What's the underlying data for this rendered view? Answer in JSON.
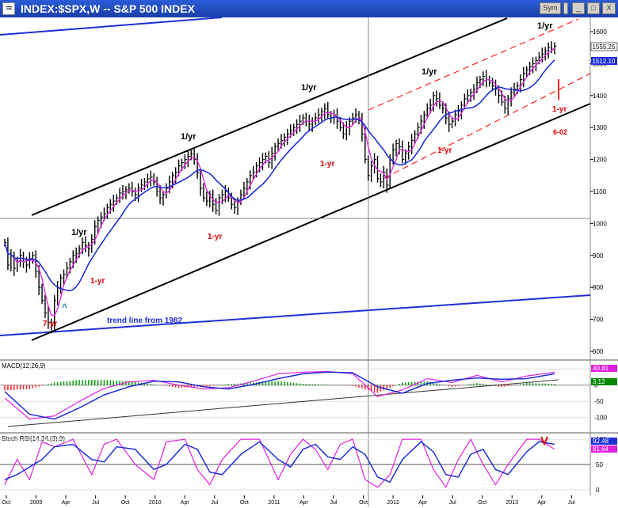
{
  "window": {
    "title": "INDEX:$SPX,W -- S&P 500 INDEX",
    "buttons": {
      "sym": "Sym",
      "minimize": "_",
      "maximize": "□",
      "close": "X"
    }
  },
  "chart_data": [
    {
      "type": "candlestick",
      "panel": "price",
      "y_ticks": [
        600,
        700,
        800,
        900,
        1000,
        1100,
        1200,
        1300,
        1400,
        1500,
        1600
      ],
      "ylim": [
        580,
        1660
      ],
      "x_start": "2008-10",
      "x_end": "2013-07",
      "last_price": "1555.25",
      "ma_value": "1512.10",
      "colors": {
        "price": "#000000",
        "fast_ma": "#e020e0",
        "slow_ma": "#1f2fd6",
        "channel": "#000000",
        "dashed_channel": "#ff0000",
        "trend_1982": "#1f2fd6"
      },
      "weekly_close": [
        [
          0,
          940
        ],
        [
          1,
          870
        ],
        [
          2,
          900
        ],
        [
          3,
          860
        ],
        [
          4,
          880
        ],
        [
          5,
          900
        ],
        [
          6,
          880
        ],
        [
          7,
          870
        ],
        [
          8,
          890
        ],
        [
          9,
          900
        ],
        [
          10,
          850
        ],
        [
          11,
          800
        ],
        [
          12,
          760
        ],
        [
          13,
          720
        ],
        [
          14,
          690
        ],
        [
          15,
          680
        ],
        [
          16,
          760
        ],
        [
          17,
          800
        ],
        [
          18,
          830
        ],
        [
          19,
          840
        ],
        [
          20,
          860
        ],
        [
          21,
          880
        ],
        [
          22,
          900
        ],
        [
          23,
          905
        ],
        [
          24,
          920
        ],
        [
          25,
          940
        ],
        [
          26,
          930
        ],
        [
          27,
          920
        ],
        [
          28,
          950
        ],
        [
          29,
          990
        ],
        [
          30,
          1010
        ],
        [
          31,
          1020
        ],
        [
          32,
          1030
        ],
        [
          33,
          1050
        ],
        [
          34,
          1060
        ],
        [
          35,
          1070
        ],
        [
          36,
          1080
        ],
        [
          37,
          1095
        ],
        [
          38,
          1100
        ],
        [
          39,
          1105
        ],
        [
          40,
          1110
        ],
        [
          41,
          1100
        ],
        [
          42,
          1090
        ],
        [
          43,
          1110
        ],
        [
          44,
          1120
        ],
        [
          45,
          1130
        ],
        [
          46,
          1140
        ],
        [
          47,
          1145
        ],
        [
          48,
          1130
        ],
        [
          49,
          1100
        ],
        [
          50,
          1080
        ],
        [
          51,
          1090
        ],
        [
          52,
          1110
        ],
        [
          53,
          1130
        ],
        [
          54,
          1150
        ],
        [
          55,
          1160
        ],
        [
          56,
          1180
        ],
        [
          57,
          1190
        ],
        [
          58,
          1200
        ],
        [
          59,
          1210
        ],
        [
          60,
          1217
        ],
        [
          61,
          1200
        ],
        [
          62,
          1160
        ],
        [
          63,
          1110
        ],
        [
          64,
          1080
        ],
        [
          65,
          1070
        ],
        [
          66,
          1090
        ],
        [
          67,
          1060
        ],
        [
          68,
          1040
        ],
        [
          69,
          1080
        ],
        [
          70,
          1090
        ],
        [
          71,
          1100
        ],
        [
          72,
          1080
        ],
        [
          73,
          1060
        ],
        [
          74,
          1050
        ],
        [
          75,
          1070
        ],
        [
          76,
          1090
        ],
        [
          77,
          1110
        ],
        [
          78,
          1130
        ],
        [
          79,
          1150
        ],
        [
          80,
          1160
        ],
        [
          81,
          1180
        ],
        [
          82,
          1190
        ],
        [
          83,
          1200
        ],
        [
          84,
          1210
        ],
        [
          85,
          1190
        ],
        [
          86,
          1220
        ],
        [
          87,
          1240
        ],
        [
          88,
          1250
        ],
        [
          89,
          1260
        ],
        [
          90,
          1270
        ],
        [
          91,
          1280
        ],
        [
          92,
          1290
        ],
        [
          93,
          1300
        ],
        [
          94,
          1310
        ],
        [
          95,
          1320
        ],
        [
          96,
          1330
        ],
        [
          97,
          1320
        ],
        [
          98,
          1310
        ],
        [
          99,
          1320
        ],
        [
          100,
          1330
        ],
        [
          101,
          1340
        ],
        [
          102,
          1350
        ],
        [
          103,
          1360
        ],
        [
          104,
          1340
        ],
        [
          105,
          1330
        ],
        [
          106,
          1340
        ],
        [
          107,
          1320
        ],
        [
          108,
          1300
        ],
        [
          109,
          1280
        ],
        [
          110,
          1300
        ],
        [
          111,
          1320
        ],
        [
          112,
          1330
        ],
        [
          113,
          1340
        ],
        [
          114,
          1330
        ],
        [
          115,
          1280
        ],
        [
          116,
          1200
        ],
        [
          117,
          1150
        ],
        [
          118,
          1180
        ],
        [
          119,
          1200
        ],
        [
          120,
          1140
        ],
        [
          121,
          1130
        ],
        [
          122,
          1160
        ],
        [
          123,
          1120
        ],
        [
          124,
          1200
        ],
        [
          125,
          1230
        ],
        [
          126,
          1250
        ],
        [
          127,
          1240
        ],
        [
          128,
          1200
        ],
        [
          129,
          1220
        ],
        [
          130,
          1240
        ],
        [
          131,
          1260
        ],
        [
          132,
          1280
        ],
        [
          133,
          1300
        ],
        [
          134,
          1320
        ],
        [
          135,
          1340
        ],
        [
          136,
          1360
        ],
        [
          137,
          1370
        ],
        [
          138,
          1400
        ],
        [
          139,
          1390
        ],
        [
          140,
          1370
        ],
        [
          141,
          1360
        ],
        [
          142,
          1330
        ],
        [
          143,
          1310
        ],
        [
          144,
          1320
        ],
        [
          145,
          1340
        ],
        [
          146,
          1350
        ],
        [
          147,
          1370
        ],
        [
          148,
          1390
        ],
        [
          149,
          1400
        ],
        [
          150,
          1410
        ],
        [
          151,
          1420
        ],
        [
          152,
          1440
        ],
        [
          153,
          1450
        ],
        [
          154,
          1460
        ],
        [
          155,
          1450
        ],
        [
          156,
          1440
        ],
        [
          157,
          1430
        ],
        [
          158,
          1420
        ],
        [
          159,
          1400
        ],
        [
          160,
          1380
        ],
        [
          161,
          1360
        ],
        [
          162,
          1390
        ],
        [
          163,
          1410
        ],
        [
          164,
          1420
        ],
        [
          165,
          1430
        ],
        [
          166,
          1450
        ],
        [
          167,
          1470
        ],
        [
          168,
          1480
        ],
        [
          169,
          1490
        ],
        [
          170,
          1500
        ],
        [
          171,
          1510
        ],
        [
          172,
          1520
        ],
        [
          173,
          1530
        ],
        [
          174,
          1540
        ],
        [
          175,
          1550
        ],
        [
          176,
          1545
        ],
        [
          177,
          1555
        ]
      ],
      "annotations": [
        {
          "text": "trend line from 1982",
          "color": "#1f2fd6"
        },
        {
          "text": "7-yr",
          "color": "#dd0000"
        },
        {
          "text": "1-yr",
          "color": "#dd0000",
          "id": "a2"
        },
        {
          "text": "1/yr",
          "color": "#000000",
          "id": "a3"
        },
        {
          "text": "^",
          "color": "#1f8f8f"
        },
        {
          "text": "1/yr",
          "color": "#000000",
          "id": "a5"
        },
        {
          "text": "1-yr",
          "color": "#dd0000",
          "id": "a6"
        },
        {
          "text": "1/yr",
          "color": "#000000",
          "id": "a7"
        },
        {
          "text": "1-yr",
          "color": "#dd0000",
          "id": "a8"
        },
        {
          "text": "1/yr",
          "color": "#000000",
          "id": "a9"
        },
        {
          "text": "1-yr",
          "color": "#dd0000",
          "id": "a10"
        },
        {
          "text": "1/yr",
          "color": "#000000",
          "id": "a11"
        },
        {
          "text": "1-yr",
          "color": "#dd0000",
          "id": "a12"
        },
        {
          "text": "6-02",
          "color": "#dd0000"
        }
      ]
    },
    {
      "type": "macd",
      "panel": "macd",
      "label": "MACD(12,26,9)",
      "y_ticks": [
        50,
        0,
        -50,
        -100
      ],
      "ylim": [
        -130,
        70
      ],
      "macd_value": "40.81",
      "signal_value": "3.12",
      "colors": {
        "macd": "#e020e0",
        "signal": "#1f2fd6",
        "hist_pos": "#00a000",
        "hist_neg": "#ff2020"
      },
      "macd_line": [
        [
          0,
          -40
        ],
        [
          8,
          -105
        ],
        [
          16,
          -95
        ],
        [
          24,
          -50
        ],
        [
          32,
          -10
        ],
        [
          40,
          10
        ],
        [
          48,
          15
        ],
        [
          56,
          0
        ],
        [
          64,
          -12
        ],
        [
          72,
          -8
        ],
        [
          80,
          12
        ],
        [
          88,
          35
        ],
        [
          96,
          40
        ],
        [
          104,
          42
        ],
        [
          112,
          35
        ],
        [
          120,
          -35
        ],
        [
          128,
          -15
        ],
        [
          136,
          20
        ],
        [
          144,
          8
        ],
        [
          152,
          30
        ],
        [
          160,
          10
        ],
        [
          168,
          28
        ],
        [
          177,
          40
        ]
      ],
      "signal_line": [
        [
          0,
          -20
        ],
        [
          8,
          -90
        ],
        [
          16,
          -105
        ],
        [
          24,
          -70
        ],
        [
          32,
          -30
        ],
        [
          40,
          -5
        ],
        [
          48,
          12
        ],
        [
          56,
          10
        ],
        [
          64,
          -5
        ],
        [
          72,
          -12
        ],
        [
          80,
          2
        ],
        [
          88,
          20
        ],
        [
          96,
          35
        ],
        [
          104,
          40
        ],
        [
          112,
          38
        ],
        [
          120,
          -5
        ],
        [
          128,
          -25
        ],
        [
          136,
          5
        ],
        [
          144,
          15
        ],
        [
          152,
          22
        ],
        [
          160,
          18
        ],
        [
          168,
          20
        ],
        [
          177,
          35
        ]
      ]
    },
    {
      "type": "stochrsi",
      "panel": "stochrsi",
      "label": "Stoch RSI(14,34,(3),9)",
      "y_ticks": [
        100,
        50,
        0
      ],
      "ylim": [
        -8,
        108
      ],
      "k_value": "92.48",
      "d_value": "81.64",
      "colors": {
        "k": "#e020e0",
        "d": "#1f2fd6"
      },
      "k_line": [
        [
          0,
          10
        ],
        [
          4,
          60
        ],
        [
          8,
          20
        ],
        [
          12,
          95
        ],
        [
          16,
          85
        ],
        [
          22,
          100
        ],
        [
          28,
          30
        ],
        [
          32,
          90
        ],
        [
          36,
          100
        ],
        [
          42,
          50
        ],
        [
          48,
          20
        ],
        [
          52,
          95
        ],
        [
          58,
          100
        ],
        [
          62,
          40
        ],
        [
          66,
          10
        ],
        [
          70,
          60
        ],
        [
          76,
          100
        ],
        [
          82,
          100
        ],
        [
          88,
          20
        ],
        [
          92,
          70
        ],
        [
          96,
          100
        ],
        [
          100,
          80
        ],
        [
          104,
          40
        ],
        [
          108,
          90
        ],
        [
          112,
          100
        ],
        [
          116,
          20
        ],
        [
          120,
          5
        ],
        [
          124,
          30
        ],
        [
          128,
          100
        ],
        [
          134,
          100
        ],
        [
          138,
          40
        ],
        [
          142,
          5
        ],
        [
          146,
          60
        ],
        [
          150,
          100
        ],
        [
          154,
          50
        ],
        [
          158,
          10
        ],
        [
          162,
          50
        ],
        [
          168,
          100
        ],
        [
          172,
          100
        ],
        [
          177,
          80
        ]
      ],
      "d_line": [
        [
          0,
          20
        ],
        [
          4,
          30
        ],
        [
          8,
          45
        ],
        [
          12,
          60
        ],
        [
          16,
          85
        ],
        [
          22,
          90
        ],
        [
          28,
          60
        ],
        [
          32,
          55
        ],
        [
          36,
          85
        ],
        [
          42,
          80
        ],
        [
          48,
          40
        ],
        [
          52,
          50
        ],
        [
          58,
          90
        ],
        [
          62,
          80
        ],
        [
          66,
          35
        ],
        [
          70,
          30
        ],
        [
          76,
          70
        ],
        [
          82,
          95
        ],
        [
          88,
          60
        ],
        [
          92,
          45
        ],
        [
          96,
          80
        ],
        [
          100,
          90
        ],
        [
          104,
          65
        ],
        [
          108,
          60
        ],
        [
          112,
          85
        ],
        [
          116,
          70
        ],
        [
          120,
          25
        ],
        [
          124,
          15
        ],
        [
          128,
          60
        ],
        [
          134,
          95
        ],
        [
          138,
          75
        ],
        [
          142,
          30
        ],
        [
          146,
          25
        ],
        [
          150,
          70
        ],
        [
          154,
          80
        ],
        [
          158,
          40
        ],
        [
          162,
          30
        ],
        [
          168,
          75
        ],
        [
          172,
          95
        ],
        [
          177,
          90
        ]
      ]
    }
  ],
  "x_axis": {
    "ticks": [
      {
        "label": "Oct",
        "week": 0
      },
      {
        "label": "2009",
        "week": 13
      },
      {
        "label": "Apr",
        "week": 26
      },
      {
        "label": "Jul",
        "week": 39
      },
      {
        "label": "Oct",
        "week": 52
      },
      {
        "label": "2010",
        "week": 65
      },
      {
        "label": "Apr",
        "week": 78
      },
      {
        "label": "Jul",
        "week": 91
      },
      {
        "label": "Oct",
        "week": 104
      },
      {
        "label": "2011",
        "week": 117
      },
      {
        "label": "Apr",
        "week": 130
      },
      {
        "label": "Jul",
        "week": 143
      },
      {
        "label": "Oct",
        "week": 156
      },
      {
        "label": "2012",
        "week": 169
      },
      {
        "label": "Apr",
        "week": 182
      },
      {
        "label": "Jul",
        "week": 195
      },
      {
        "label": "Oct",
        "week": 208
      },
      {
        "label": "2013",
        "week": 221
      },
      {
        "label": "Apr",
        "week": 234
      },
      {
        "label": "Jul",
        "week": 247
      }
    ]
  }
}
